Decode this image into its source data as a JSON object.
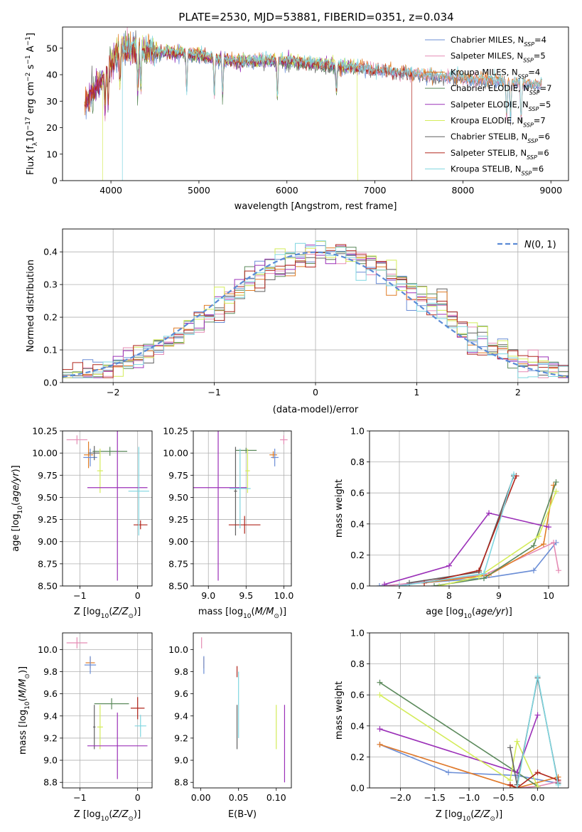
{
  "figure": {
    "title": "PLATE=2530, MJD=53881, FIBERID=0351, z=0.034"
  },
  "series_names": [
    "Chabrier MILES, N_SSP=4",
    "Salpeter MILES, N_SSP=5",
    "Kroupa MILES, N_SSP=4",
    "Chabrier ELODIE, N_SSP=7",
    "Salpeter ELODIE, N_SSP=5",
    "Kroupa ELODIE, N_SSP=7",
    "Chabrier STELIB, N_SSP=6",
    "Salpeter STELIB, N_SSP=6",
    "Kroupa STELIB, N_SSP=6"
  ],
  "colors": {
    "chabrier_miles": "#6b8ed6",
    "salpeter_miles": "#e58cb5",
    "kroupa_miles": "#e07d27",
    "chabrier_elodie": "#5c8a5c",
    "salpeter_elodie": "#9b30b8",
    "kroupa_elodie": "#d4ec5a",
    "chabrier_stelib": "#606060",
    "salpeter_stelib": "#b0261c",
    "kroupa_stelib": "#7fd6e0",
    "normal": "#5b8bd6"
  },
  "chart_data": [
    {
      "id": "spectrum",
      "type": "line",
      "title": "PLATE=2530, MJD=53881, FIBERID=0351, z=0.034",
      "xlabel": "wavelength [Angstrom, rest frame]",
      "ylabel": "Flux [f_λ 10^-17 erg cm^-2 s^-1 A^-1]",
      "xlim": [
        3450,
        9200
      ],
      "ylim": [
        0,
        58
      ],
      "xticks": [
        4000,
        5000,
        6000,
        7000,
        8000,
        9000
      ],
      "yticks": [
        0,
        10,
        20,
        30,
        40,
        50
      ],
      "grid": false,
      "legend": "top-right",
      "continuum": {
        "x": [
          3700,
          3800,
          3900,
          4000,
          4100,
          4200,
          4300,
          4400,
          4600,
          4800,
          5000,
          5200,
          5400,
          5600,
          5800,
          6000,
          6200,
          6400,
          6600,
          6800,
          7000,
          7200,
          7400,
          7600,
          7800,
          8000,
          8200,
          8400,
          8600,
          8800,
          8900
        ],
        "y": [
          29,
          34,
          38,
          45,
          50,
          50,
          49,
          49,
          48.5,
          48,
          47.5,
          46,
          45,
          45,
          45.5,
          45,
          44.5,
          44,
          43,
          42.5,
          41.5,
          41,
          40.5,
          39.5,
          39,
          38.5,
          38,
          37.5,
          37,
          36.5,
          36.5
        ]
      },
      "absorption_lines": [
        3934,
        3969,
        4102,
        4305,
        4340,
        4861,
        5175,
        5270,
        5892,
        6563,
        8498,
        8542,
        8662
      ],
      "truncations": [
        {
          "series": 5,
          "x": 3905,
          "min_wave": 3905
        },
        {
          "series": 7,
          "x": 7420,
          "max_wave": 7420
        },
        {
          "series": 8,
          "x": 4130,
          "min_wave": 4130
        }
      ]
    },
    {
      "id": "residuals",
      "type": "histogram",
      "xlabel": "(data-model)/error",
      "ylabel": "Normed distribution",
      "xlim": [
        -2.5,
        2.5
      ],
      "ylim": [
        0,
        0.47
      ],
      "xticks": [
        -2,
        -1,
        0,
        1,
        2
      ],
      "yticks": [
        0,
        0.1,
        0.2,
        0.3,
        0.4
      ],
      "grid": true,
      "legend": "top-right",
      "reference_label": "N(0,1)",
      "bin_width": 0.1
    },
    {
      "id": "age_vs_z",
      "type": "errorbar",
      "xlabel": "Z [log10(Z/Z_sun)]",
      "ylabel": "age [log10(age/yr)]",
      "xlim": [
        -1.3,
        0.25
      ],
      "ylim": [
        8.5,
        10.25
      ],
      "xticks": [
        -1,
        0
      ],
      "yticks": [
        8.5,
        8.75,
        9.0,
        9.25,
        9.5,
        9.75,
        10.0,
        10.25
      ],
      "grid": true,
      "points": [
        {
          "series": 1,
          "x": -1.05,
          "y": 10.15,
          "xerr": 0.18,
          "yerr": 0.05
        },
        {
          "series": 2,
          "x": -0.85,
          "y": 9.98,
          "xerr": 0.08,
          "yerr": 0.15
        },
        {
          "series": 0,
          "x": -0.82,
          "y": 9.95,
          "xerr": 0.12,
          "yerr": 0.1
        },
        {
          "series": 3,
          "x": -0.48,
          "y": 10.02,
          "xerr": 0.3,
          "yerr": 0.05
        },
        {
          "series": 6,
          "x": -0.75,
          "y": 10.0,
          "xerr": 0.1,
          "yerr": 0.08
        },
        {
          "series": 5,
          "x": -0.65,
          "y": 9.8,
          "xerr": 0.05,
          "yerr": 0.25
        },
        {
          "series": 4,
          "x": -0.35,
          "y": 9.61,
          "xerr": 0.52,
          "yerr": 1.05
        },
        {
          "series": 7,
          "x": 0.05,
          "y": 9.19,
          "xerr": 0.12,
          "yerr": 0.05
        },
        {
          "series": 8,
          "x": 0.02,
          "y": 9.57,
          "xerr": 0.18,
          "yerr": 0.5
        }
      ]
    },
    {
      "id": "age_vs_mass",
      "type": "errorbar",
      "xlabel": "mass [log10(M/M_sun)]",
      "ylabel": "",
      "xlim": [
        8.8,
        10.1
      ],
      "ylim": [
        8.5,
        10.25
      ],
      "xticks": [
        9.0,
        9.5,
        10.0
      ],
      "yticks": [
        8.5,
        8.75,
        9.0,
        9.25,
        9.5,
        9.75,
        10.0,
        10.25
      ],
      "grid": true,
      "points": [
        {
          "series": 1,
          "x": 10.0,
          "y": 10.15,
          "xerr": 0.05,
          "yerr": 0.05
        },
        {
          "series": 2,
          "x": 9.86,
          "y": 9.98,
          "xerr": 0.05,
          "yerr": 0.04
        },
        {
          "series": 0,
          "x": 9.88,
          "y": 9.95,
          "xerr": 0.05,
          "yerr": 0.1
        },
        {
          "series": 3,
          "x": 9.5,
          "y": 10.03,
          "xerr": 0.14,
          "yerr": 0.03
        },
        {
          "series": 6,
          "x": 9.36,
          "y": 9.57,
          "xerr": 0.02,
          "yerr": 0.5
        },
        {
          "series": 5,
          "x": 9.52,
          "y": 9.8,
          "xerr": 0.03,
          "yerr": 0.25
        },
        {
          "series": 4,
          "x": 9.13,
          "y": 9.61,
          "xerr": 0.38,
          "yerr": 1.05
        },
        {
          "series": 7,
          "x": 9.48,
          "y": 9.19,
          "xerr": 0.21,
          "yerr": 0.1
        },
        {
          "series": 8,
          "x": 9.42,
          "y": 9.6,
          "xerr": 0.14,
          "yerr": 0.45
        }
      ]
    },
    {
      "id": "weight_vs_age",
      "type": "line",
      "xlabel": "age [log10(age/yr)]",
      "ylabel": "mass weight",
      "xlim": [
        6.4,
        10.4
      ],
      "ylim": [
        0,
        1
      ],
      "xticks": [
        7,
        8,
        9,
        10
      ],
      "yticks": [
        0,
        0.2,
        0.4,
        0.6,
        0.8,
        1.0
      ],
      "grid": true,
      "series": [
        {
          "series": 0,
          "x": [
            6.6,
            8.7,
            9.7,
            10.15
          ],
          "y": [
            0.0,
            0.05,
            0.1,
            0.28
          ]
        },
        {
          "series": 1,
          "x": [
            6.7,
            8.7,
            10.1,
            10.2
          ],
          "y": [
            0.0,
            0.07,
            0.28,
            0.1
          ]
        },
        {
          "series": 2,
          "x": [
            7.5,
            8.8,
            9.9,
            10.1
          ],
          "y": [
            0.02,
            0.07,
            0.27,
            0.65
          ]
        },
        {
          "series": 3,
          "x": [
            7.7,
            8.7,
            9.7,
            10.15
          ],
          "y": [
            0.0,
            0.05,
            0.26,
            0.67
          ]
        },
        {
          "series": 4,
          "x": [
            6.7,
            8.0,
            8.8,
            10.0
          ],
          "y": [
            0.01,
            0.13,
            0.47,
            0.38
          ]
        },
        {
          "series": 5,
          "x": [
            7.8,
            8.6,
            9.8,
            10.15
          ],
          "y": [
            0.0,
            0.06,
            0.32,
            0.61
          ]
        },
        {
          "series": 6,
          "x": [
            7.2,
            8.6,
            9.3
          ],
          "y": [
            0.02,
            0.09,
            0.71
          ]
        },
        {
          "series": 7,
          "x": [
            7.5,
            8.6,
            9.35
          ],
          "y": [
            0.02,
            0.1,
            0.71
          ]
        },
        {
          "series": 8,
          "x": [
            7.0,
            8.7,
            9.3
          ],
          "y": [
            0.0,
            0.08,
            0.72
          ]
        }
      ]
    },
    {
      "id": "mass_vs_z",
      "type": "errorbar",
      "xlabel": "Z [log10(Z/Z_sun)]",
      "ylabel": "mass [log10(M/M_sun)]",
      "xlim": [
        -1.3,
        0.25
      ],
      "ylim": [
        8.75,
        10.15
      ],
      "xticks": [
        -1,
        0
      ],
      "yticks": [
        8.8,
        9.0,
        9.2,
        9.4,
        9.6,
        9.8,
        10.0
      ],
      "grid": true,
      "points": [
        {
          "series": 1,
          "x": -1.05,
          "y": 10.06,
          "xerr": 0.18,
          "yerr": 0.05
        },
        {
          "series": 2,
          "x": -0.82,
          "y": 9.88,
          "xerr": 0.08,
          "yerr": 0.05
        },
        {
          "series": 0,
          "x": -0.82,
          "y": 9.86,
          "xerr": 0.1,
          "yerr": 0.08
        },
        {
          "series": 3,
          "x": -0.45,
          "y": 9.51,
          "xerr": 0.3,
          "yerr": 0.05
        },
        {
          "series": 6,
          "x": -0.75,
          "y": 9.3,
          "xerr": 0.02,
          "yerr": 0.2
        },
        {
          "series": 5,
          "x": -0.65,
          "y": 9.3,
          "xerr": 0.05,
          "yerr": 0.2
        },
        {
          "series": 4,
          "x": -0.35,
          "y": 9.13,
          "xerr": 0.52,
          "yerr": 0.3
        },
        {
          "series": 7,
          "x": 0.0,
          "y": 9.47,
          "xerr": 0.12,
          "yerr": 0.1
        },
        {
          "series": 8,
          "x": 0.05,
          "y": 9.31,
          "xerr": 0.1,
          "yerr": 0.1
        }
      ]
    },
    {
      "id": "mass_vs_ebv",
      "type": "errorbar",
      "xlabel": "E(B-V)",
      "ylabel": "",
      "xlim": [
        -0.01,
        0.12
      ],
      "ylim": [
        8.75,
        10.15
      ],
      "xticks": [
        0.0,
        0.05,
        0.1
      ],
      "yticks": [
        8.8,
        9.0,
        9.2,
        9.4,
        9.6,
        9.8,
        10.0
      ],
      "grid": false,
      "points": [
        {
          "series": 1,
          "x": 0.001,
          "y": 10.06,
          "xerr": 0,
          "yerr": 0.05
        },
        {
          "series": 2,
          "x": 0.004,
          "y": 9.88,
          "xerr": 0,
          "yerr": 0.05
        },
        {
          "series": 0,
          "x": 0.004,
          "y": 9.86,
          "xerr": 0,
          "yerr": 0.08
        },
        {
          "series": 7,
          "x": 0.048,
          "y": 9.8,
          "xerr": 0,
          "yerr": 0.05
        },
        {
          "series": 8,
          "x": 0.05,
          "y": 9.5,
          "xerr": 0,
          "yerr": 0.3
        },
        {
          "series": 6,
          "x": 0.048,
          "y": 9.3,
          "xerr": 0,
          "yerr": 0.2
        },
        {
          "series": 5,
          "x": 0.1,
          "y": 9.3,
          "xerr": 0,
          "yerr": 0.2
        },
        {
          "series": 4,
          "x": 0.111,
          "y": 9.15,
          "xerr": 0,
          "yerr": 0.35
        }
      ]
    },
    {
      "id": "weight_vs_z",
      "type": "line",
      "xlabel": "Z [log10(Z/Z_sun)]",
      "ylabel": "mass weight",
      "xlim": [
        -2.45,
        0.45
      ],
      "ylim": [
        0,
        1
      ],
      "xticks": [
        -2.0,
        -1.5,
        -1.0,
        -0.5,
        0.0
      ],
      "yticks": [
        0,
        0.2,
        0.4,
        0.6,
        0.8,
        1.0
      ],
      "grid": true,
      "series": [
        {
          "series": 0,
          "x": [
            -2.3,
            -1.3,
            -0.3,
            0.3
          ],
          "y": [
            0.28,
            0.1,
            0.08,
            0.03
          ]
        },
        {
          "series": 1,
          "x": [
            -2.3,
            -0.3,
            0.0,
            0.3
          ],
          "y": [
            0.28,
            0.0,
            0.01,
            0.04
          ]
        },
        {
          "series": 2,
          "x": [
            -2.3,
            -0.3,
            0.3
          ],
          "y": [
            0.28,
            0.0,
            0.07
          ]
        },
        {
          "series": 3,
          "x": [
            -2.3,
            -0.3,
            0.0
          ],
          "y": [
            0.68,
            0.1,
            0.01
          ]
        },
        {
          "series": 4,
          "x": [
            -2.3,
            -0.3,
            0.0
          ],
          "y": [
            0.38,
            0.1,
            0.47
          ]
        },
        {
          "series": 5,
          "x": [
            -2.3,
            -0.4,
            -0.3,
            0.0
          ],
          "y": [
            0.6,
            0.05,
            0.3,
            0.01
          ]
        },
        {
          "series": 6,
          "x": [
            -0.4,
            -0.3,
            0.0,
            0.3
          ],
          "y": [
            0.26,
            0.02,
            0.71,
            0.03
          ]
        },
        {
          "series": 7,
          "x": [
            -0.4,
            -0.3,
            0.0,
            0.3
          ],
          "y": [
            0.02,
            0.0,
            0.1,
            0.05
          ]
        },
        {
          "series": 8,
          "x": [
            -0.3,
            0.0,
            0.3
          ],
          "y": [
            0.0,
            0.72,
            0.02
          ]
        }
      ]
    }
  ]
}
